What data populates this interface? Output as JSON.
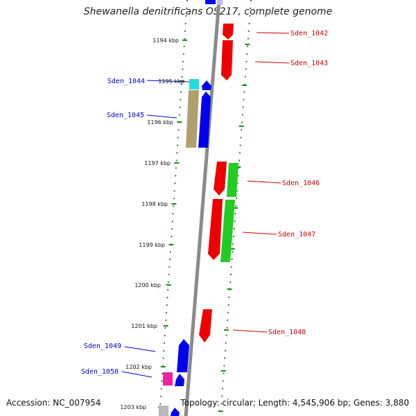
{
  "title": "Shewanella denitrificans OS217, complete genome",
  "footer": {
    "accession": "Accession: NC_007954",
    "summary": "Topology: circular; Length: 4,545,906 bp; Genes: 3,880"
  },
  "colors": {
    "forward_strand": "#0000ee",
    "reverse_strand": "#ee0000",
    "green_feature": "#22cc22",
    "cyan_feature": "#22dddd",
    "tan_feature": "#b0a070",
    "magenta_feature": "#ee2299",
    "grey_feature": "#b8b8b8",
    "tick_color": "#228822",
    "axis_color": "#888888"
  },
  "scale_labels": [
    "1194 kbp",
    "1195 kbp",
    "1196 kbp",
    "1197 kbp",
    "1198 kbp",
    "1199 kbp",
    "1200 kbp",
    "1201 kbp",
    "1202 kbp",
    "1203 kbp"
  ],
  "gene_labels": {
    "left": [
      "Sden_1044",
      "Sden_1045",
      "Sden_1049",
      "Sden_1050"
    ],
    "right": [
      "Sden_1042",
      "Sden_1043",
      "Sden_1046",
      "Sden_1047",
      "Sden_1048"
    ]
  }
}
